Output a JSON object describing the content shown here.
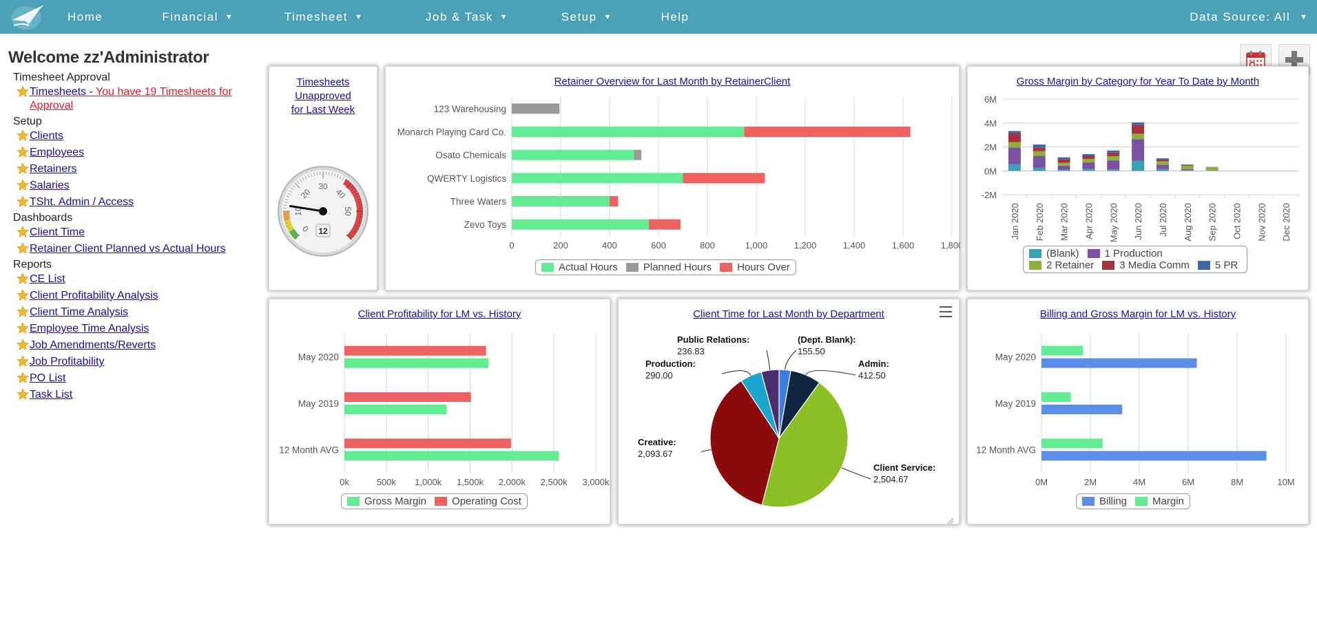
{
  "nav": {
    "items": [
      {
        "label": "Home",
        "caret": false
      },
      {
        "label": "Financial",
        "caret": true
      },
      {
        "label": "Timesheet",
        "caret": true
      },
      {
        "label": "Job & Task",
        "caret": true
      },
      {
        "label": "Setup",
        "caret": true
      },
      {
        "label": "Help",
        "caret": false
      }
    ],
    "data_source": "Data Source: All"
  },
  "sidebar": {
    "welcome": "Welcome zz'Administrator",
    "sections": [
      {
        "title": "Timesheet Approval",
        "links": [
          {
            "label": "Timesheets - You have 19 Timesheets for Approval",
            "highlight": "red"
          }
        ]
      },
      {
        "title": "Setup",
        "links": [
          {
            "label": "Clients"
          },
          {
            "label": "Employees"
          },
          {
            "label": "Retainers"
          },
          {
            "label": "Salaries"
          },
          {
            "label": "TSht. Admin / Access"
          }
        ]
      },
      {
        "title": "Dashboards",
        "links": [
          {
            "label": "Client Time"
          },
          {
            "label": "Retainer Client Planned vs Actual Hours"
          }
        ]
      },
      {
        "title": "Reports",
        "links": [
          {
            "label": "CE List"
          },
          {
            "label": "Client Profitability Analysis"
          },
          {
            "label": "Client Time Analysis"
          },
          {
            "label": "Employee Time Analysis"
          },
          {
            "label": "Job Amendments/Reverts"
          },
          {
            "label": "Job Profitability"
          },
          {
            "label": "PO List"
          },
          {
            "label": "Task List"
          }
        ]
      }
    ]
  },
  "tools": {
    "calendar_icon": "calendar-icon",
    "add_icon": "plus-icon"
  },
  "colors": {
    "nav": "#4aa0b4",
    "green": "#63ec91",
    "red": "#ef6262",
    "gray": "#9a9a9a",
    "blue": "#5b8fe6",
    "link": "#1a0dab"
  },
  "chart_data": [
    {
      "id": "gauge",
      "type": "gauge",
      "title": "Timesheets Unapproved for Last Week",
      "min": 0,
      "max": 60,
      "value": 12,
      "tick_labels": [
        "0",
        "10",
        "20",
        "30",
        "40",
        "50"
      ]
    },
    {
      "id": "retainer",
      "type": "bar",
      "orientation": "horizontal",
      "stacked": true,
      "title": "Retainer Overview for Last Month by RetainerClient",
      "categories": [
        "123 Warehousing",
        "Monarch Playing Card Co.",
        "Osato Chemicals",
        "QWERTY Logistics",
        "Three Waters",
        "Zevo Toys"
      ],
      "series": [
        {
          "name": "Actual Hours",
          "color": "#63ec91",
          "values": [
            0,
            950,
            500,
            700,
            400,
            560
          ]
        },
        {
          "name": "Planned Hours",
          "color": "#9a9a9a",
          "values": [
            195,
            0,
            30,
            0,
            0,
            0
          ]
        },
        {
          "name": "Hours Over",
          "color": "#ef6262",
          "values": [
            0,
            680,
            0,
            335,
            35,
            130
          ]
        }
      ],
      "xlim": [
        0,
        1800
      ],
      "xticks": [
        "0",
        "200",
        "400",
        "600",
        "800",
        "1,000",
        "1,200",
        "1,400",
        "1,600",
        "1,800"
      ]
    },
    {
      "id": "grossmargin",
      "type": "bar",
      "stacked": true,
      "title": "Gross Margin by Category for Year To Date by Month",
      "categories": [
        "Jan 2020",
        "Feb 2020",
        "Mar 2020",
        "Apr 2020",
        "May 2020",
        "Jun 2020",
        "Jul 2020",
        "Aug 2020",
        "Sep 2020",
        "Oct 2020",
        "Nov 2020",
        "Dec 2020"
      ],
      "series": [
        {
          "name": "(Blank)",
          "color": "#3aa0b4",
          "values": [
            0.55,
            0.25,
            0.08,
            0.15,
            0.12,
            0.85,
            0.15,
            0.05,
            0.03,
            0,
            0,
            0
          ]
        },
        {
          "name": "1 Production",
          "color": "#7b52a1",
          "values": [
            1.4,
            1.0,
            0.35,
            0.55,
            0.75,
            1.8,
            0.35,
            0.08,
            0.02,
            0,
            0,
            0
          ]
        },
        {
          "name": "2 Retainer",
          "color": "#8faf3c",
          "values": [
            0.45,
            0.4,
            0.25,
            0.3,
            0.35,
            0.45,
            0.3,
            0.3,
            0.25,
            0,
            0,
            0
          ]
        },
        {
          "name": "3 Media Comm",
          "color": "#a8323c",
          "values": [
            0.75,
            0.3,
            0.3,
            0.25,
            0.3,
            0.75,
            0.15,
            0.05,
            0.02,
            0,
            0,
            0
          ]
        },
        {
          "name": "5 PR",
          "color": "#3d67a8",
          "values": [
            0.18,
            0.25,
            0.15,
            0.15,
            0.18,
            0.2,
            0.1,
            0.05,
            0.0,
            0,
            0,
            0
          ]
        }
      ],
      "ylim": [
        -2,
        6
      ],
      "yticks": [
        "-2M",
        "0M",
        "2M",
        "4M",
        "6M"
      ]
    },
    {
      "id": "profitability",
      "type": "bar",
      "orientation": "horizontal",
      "title": "Client Profitability for LM vs. History",
      "categories": [
        "May 2020",
        "May 2019",
        "12 Month AVG"
      ],
      "series": [
        {
          "name": "Gross Margin",
          "color": "#63ec91",
          "values": [
            1720,
            1220,
            2560
          ]
        },
        {
          "name": "Operating Cost",
          "color": "#ef6262",
          "values": [
            1690,
            1510,
            1990
          ]
        }
      ],
      "xlim": [
        0,
        3000
      ],
      "xticks": [
        "0k",
        "500k",
        "1,000k",
        "1,500k",
        "2,000k",
        "2,500k",
        "3,000k"
      ]
    },
    {
      "id": "clienttime",
      "type": "pie",
      "title": "Client Time for Last Month by Department",
      "slices": [
        {
          "label": "(Dept. Blank)",
          "value": 155.5,
          "display": "155.50",
          "color": "#3c7fd9"
        },
        {
          "label": "Admin",
          "value": 412.5,
          "display": "412.50",
          "color": "#0f2540"
        },
        {
          "label": "Client Service",
          "value": 2504.67,
          "display": "2,504.67",
          "color": "#8bbf24"
        },
        {
          "label": "Creative",
          "value": 2093.67,
          "display": "2,093.67",
          "color": "#8b0a0c"
        },
        {
          "label": "Production",
          "value": 290.0,
          "display": "290.00",
          "color": "#1aa6cf"
        },
        {
          "label": "Public Relations",
          "value": 236.83,
          "display": "236.83",
          "color": "#4b2c6f"
        }
      ]
    },
    {
      "id": "billing",
      "type": "bar",
      "orientation": "horizontal",
      "title": "Billing and Gross Margin for LM vs. History",
      "categories": [
        "May 2020",
        "May 2019",
        "12 Month AVG"
      ],
      "series": [
        {
          "name": "Margin",
          "color": "#63ec91",
          "values": [
            1.7,
            1.2,
            2.5
          ]
        },
        {
          "name": "Billing",
          "color": "#5b8fe6",
          "values": [
            6.35,
            3.3,
            9.2
          ]
        }
      ],
      "legend_order": [
        "Billing",
        "Margin"
      ],
      "xlim": [
        0,
        10
      ],
      "xticks": [
        "0M",
        "2M",
        "4M",
        "6M",
        "8M",
        "10M"
      ]
    }
  ]
}
